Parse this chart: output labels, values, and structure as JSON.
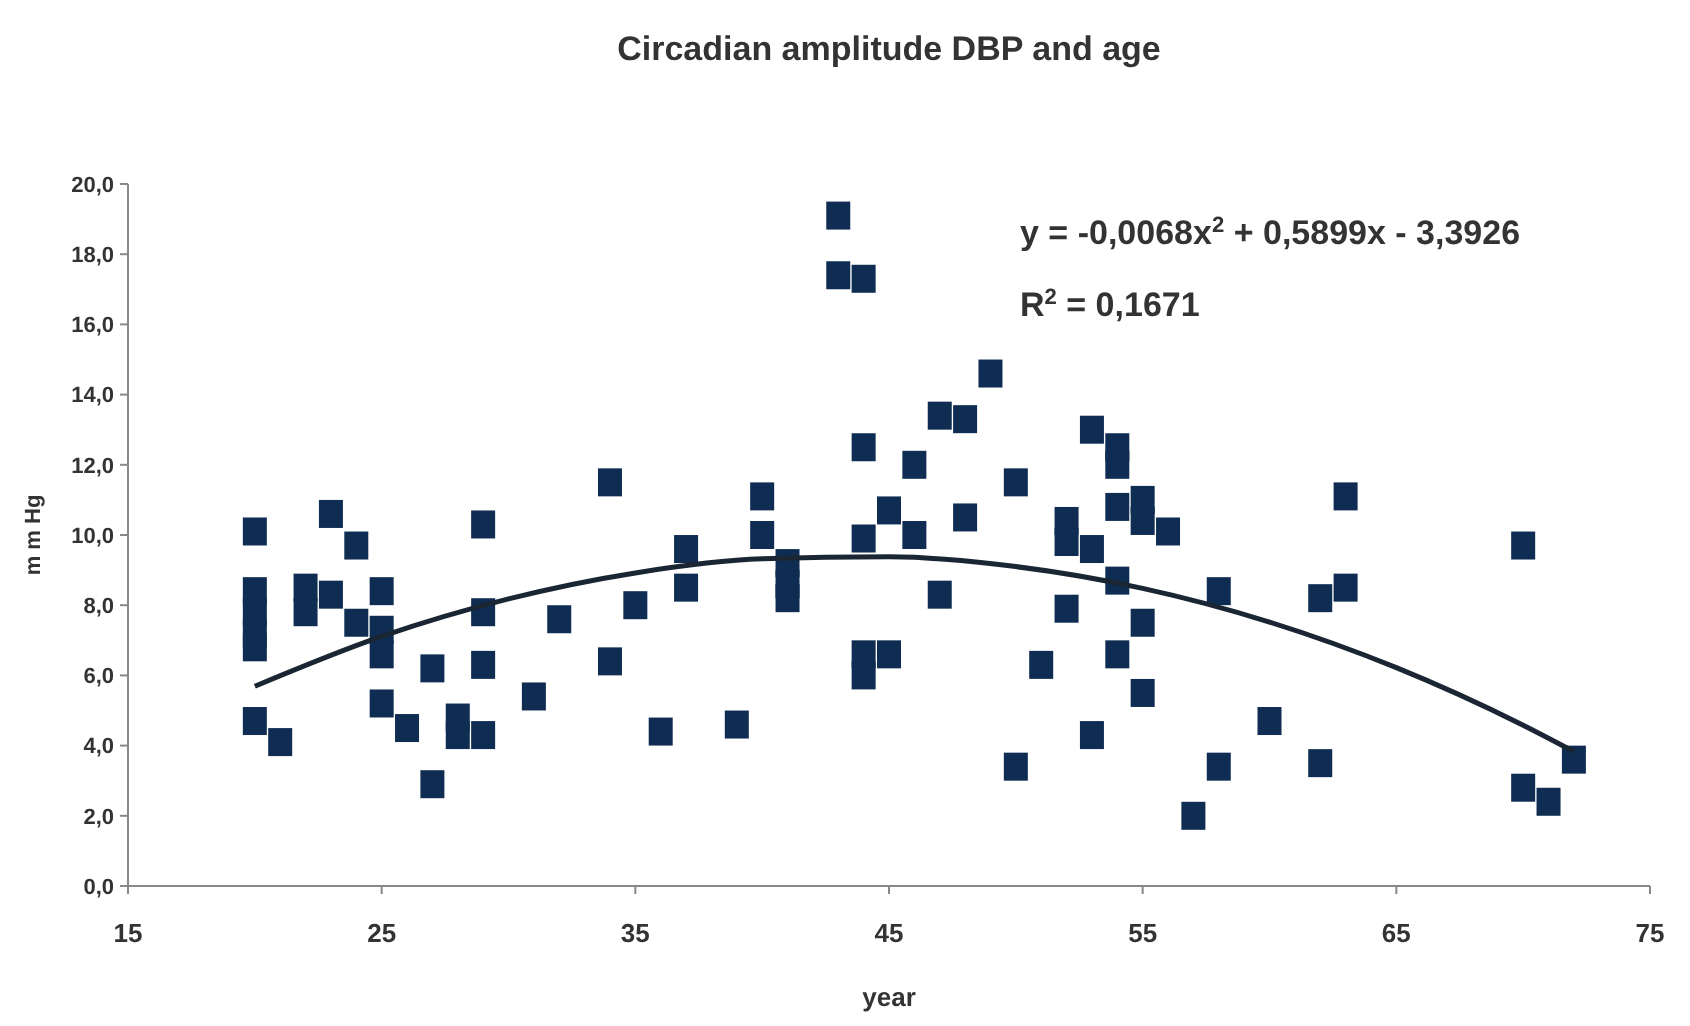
{
  "chart_data": {
    "type": "scatter",
    "title": "Circadian amplitude DBP and age",
    "xlabel": "year",
    "ylabel": "m m Hg",
    "marker": "square",
    "grid": false,
    "annotations": [
      "y = -0,0068x$^{2}$ + 0,5899x - 3,3926",
      "R$^{2}$ = 0,1671"
    ],
    "xlim": [
      15,
      75
    ],
    "xticks": [
      15,
      25,
      35,
      45,
      55,
      65,
      75
    ],
    "ylim": [
      0,
      20
    ],
    "yticks": [
      {
        "value": 0,
        "label": "0,0"
      },
      {
        "value": 2,
        "label": "2,0"
      },
      {
        "value": 4,
        "label": "4,0"
      },
      {
        "value": 6,
        "label": "6,0"
      },
      {
        "value": 8,
        "label": "8,0"
      },
      {
        "value": 10,
        "label": "10,0"
      },
      {
        "value": 12,
        "label": "12,0"
      },
      {
        "value": 14,
        "label": "14,0"
      },
      {
        "value": 16,
        "label": "16,0"
      },
      {
        "value": 18,
        "label": "18,0"
      },
      {
        "value": 20,
        "label": "20,0"
      }
    ],
    "series": [
      {
        "color": "#0f2d52",
        "x": [
          20,
          20,
          20,
          20,
          20,
          20,
          21,
          22,
          22,
          23,
          23,
          24,
          24,
          25,
          25,
          25,
          25,
          26,
          27,
          27,
          28,
          28,
          29,
          29,
          29,
          29,
          31,
          32,
          34,
          34,
          35,
          36,
          37,
          37,
          39,
          40,
          40,
          41,
          41,
          41,
          43,
          43,
          44,
          44,
          44,
          44,
          44,
          45,
          45,
          46,
          46,
          47,
          47,
          48,
          48,
          49,
          50,
          50,
          51,
          52,
          52,
          52,
          53,
          53,
          53,
          54,
          54,
          54,
          54,
          54,
          55,
          55,
          55,
          55,
          56,
          57,
          58,
          58,
          60,
          62,
          62,
          63,
          63,
          70,
          70,
          71,
          72
        ],
        "values": [
          10.1,
          8.4,
          7.8,
          7.2,
          6.8,
          4.7,
          4.1,
          8.5,
          7.8,
          10.6,
          8.3,
          9.7,
          7.5,
          8.4,
          7.3,
          6.6,
          5.2,
          4.5,
          6.2,
          2.9,
          4.8,
          4.3,
          10.3,
          7.8,
          6.3,
          4.3,
          5.4,
          7.6,
          11.5,
          6.4,
          8.0,
          4.4,
          9.6,
          8.5,
          4.6,
          11.1,
          10.0,
          9.2,
          8.6,
          8.2,
          19.1,
          17.4,
          17.3,
          12.5,
          9.9,
          6.6,
          6.0,
          10.7,
          6.6,
          12.0,
          10.0,
          13.4,
          8.3,
          13.3,
          10.5,
          14.6,
          11.5,
          3.4,
          6.3,
          10.4,
          9.8,
          7.9,
          13.0,
          9.6,
          4.3,
          12.5,
          12.0,
          10.8,
          8.7,
          6.6,
          11.0,
          10.4,
          7.5,
          5.5,
          10.1,
          2.0,
          8.4,
          3.4,
          4.7,
          8.2,
          3.5,
          11.1,
          8.5,
          9.7,
          2.8,
          2.4,
          3.6
        ]
      },
      {
        "type": "line",
        "color": "#1a2633",
        "marker": "none",
        "x": [
          20,
          25,
          30,
          35,
          40,
          45,
          50,
          55,
          60,
          65,
          70,
          72
        ],
        "values": [
          5.69,
          7.11,
          8.18,
          8.92,
          9.32,
          9.38,
          9.1,
          8.48,
          7.52,
          6.22,
          4.58,
          3.83
        ]
      }
    ]
  }
}
